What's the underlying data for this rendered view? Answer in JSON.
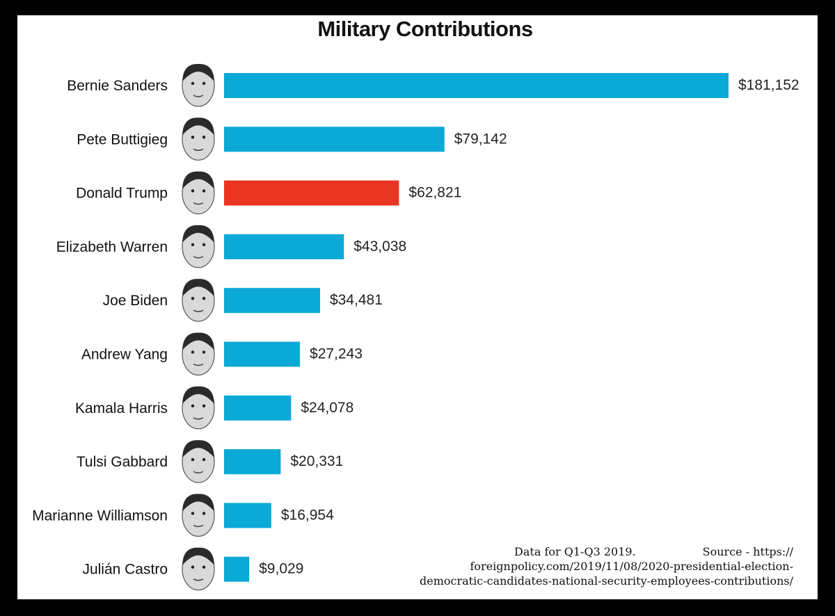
{
  "chart_data": {
    "type": "bar",
    "orientation": "horizontal",
    "title": "Military Contributions",
    "categories": [
      "Bernie Sanders",
      "Pete Buttigieg",
      "Donald Trump",
      "Elizabeth Warren",
      "Joe Biden",
      "Andrew Yang",
      "Kamala Harris",
      "Tulsi Gabbard",
      "Marianne Williamson",
      "Julián Castro"
    ],
    "values": [
      181152,
      79142,
      62821,
      43038,
      34481,
      27243,
      24078,
      20331,
      16954,
      9029
    ],
    "value_labels": [
      "$181,152",
      "$79,142",
      "$62,821",
      "$43,038",
      "$34,481",
      "$27,243",
      "$24,078",
      "$20,331",
      "$16,954",
      "$9,029"
    ],
    "colors": [
      "#0aa9d6",
      "#0aa9d6",
      "#ea3523",
      "#0aa9d6",
      "#0aa9d6",
      "#0aa9d6",
      "#0aa9d6",
      "#0aa9d6",
      "#0aa9d6",
      "#0aa9d6"
    ],
    "xlim": [
      0,
      181152
    ],
    "xlabel": "",
    "ylabel": "",
    "grid": false
  },
  "note": {
    "line1_left": "Data for Q1-Q3 2019.",
    "line1_right": "Source -  https://",
    "line2": "foreignpolicy.com/2019/11/08/2020-presidential-election-",
    "line3": "democratic-candidates-national-security-employees-contributions/"
  }
}
